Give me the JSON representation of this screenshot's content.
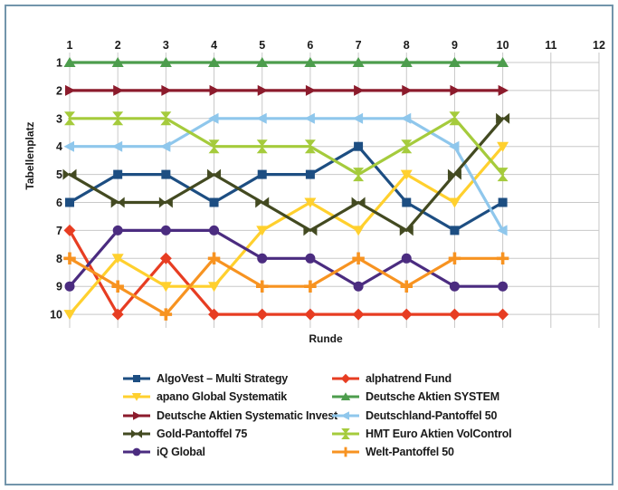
{
  "frame": {
    "border_color": "#7295ab",
    "background": "#ffffff"
  },
  "chart_data": {
    "type": "line",
    "title": "",
    "xlabel": "Runde",
    "ylabel": "Tabellenplatz",
    "x": [
      1,
      2,
      3,
      4,
      5,
      6,
      7,
      8,
      9,
      10
    ],
    "x_ticks": [
      1,
      2,
      3,
      4,
      5,
      6,
      7,
      8,
      9,
      10,
      11,
      12
    ],
    "y_ticks": [
      1,
      2,
      3,
      4,
      5,
      6,
      7,
      8,
      9,
      10
    ],
    "xlim": [
      1,
      12
    ],
    "ylim": [
      1,
      10
    ],
    "y_axis_inverted": true,
    "grid": true,
    "grid_color": "#c8c8c8",
    "text_color": "#1a1a1a",
    "legend_position": "bottom-two-columns",
    "series": [
      {
        "name": "AlgoVest – Multi Strategy",
        "color": "#1d4e82",
        "marker": "square",
        "values": [
          6,
          5,
          5,
          6,
          5,
          5,
          4,
          6,
          7,
          6
        ]
      },
      {
        "name": "alphatrend Fund",
        "color": "#e73d22",
        "marker": "diamond",
        "values": [
          7,
          10,
          8,
          10,
          10,
          10,
          10,
          10,
          10,
          10
        ]
      },
      {
        "name": "apano Global Systematik",
        "color": "#ffd02e",
        "marker": "triangle-down",
        "values": [
          10,
          8,
          9,
          9,
          7,
          6,
          7,
          5,
          6,
          4
        ]
      },
      {
        "name": "Deutsche Aktien SYSTEM",
        "color": "#4d9d4d",
        "marker": "triangle-up",
        "values": [
          1,
          1,
          1,
          1,
          1,
          1,
          1,
          1,
          1,
          1
        ]
      },
      {
        "name": "Deutsche Aktien Systematic Invest",
        "color": "#8c1b2c",
        "marker": "triangle-right",
        "values": [
          2,
          2,
          2,
          2,
          2,
          2,
          2,
          2,
          2,
          2
        ]
      },
      {
        "name": "Deutschland-Pantoffel 50",
        "color": "#8fc7ec",
        "marker": "triangle-left",
        "values": [
          4,
          4,
          4,
          3,
          3,
          3,
          3,
          3,
          4,
          7
        ]
      },
      {
        "name": "Gold-Pantoffel 75",
        "color": "#434a21",
        "marker": "bowtie-horizontal",
        "values": [
          5,
          6,
          6,
          5,
          6,
          7,
          6,
          7,
          5,
          3
        ]
      },
      {
        "name": "HMT Euro Aktien VolControl",
        "color": "#a5cb3c",
        "marker": "bowtie-vertical",
        "values": [
          3,
          3,
          3,
          4,
          4,
          4,
          5,
          4,
          3,
          5
        ]
      },
      {
        "name": "iQ Global",
        "color": "#4b2c80",
        "marker": "circle",
        "values": [
          9,
          7,
          7,
          7,
          8,
          8,
          9,
          8,
          9,
          9
        ]
      },
      {
        "name": "Welt-Pantoffel 50",
        "color": "#f79321",
        "marker": "plus",
        "values": [
          8,
          9,
          10,
          8,
          9,
          9,
          8,
          9,
          8,
          8
        ]
      }
    ]
  }
}
